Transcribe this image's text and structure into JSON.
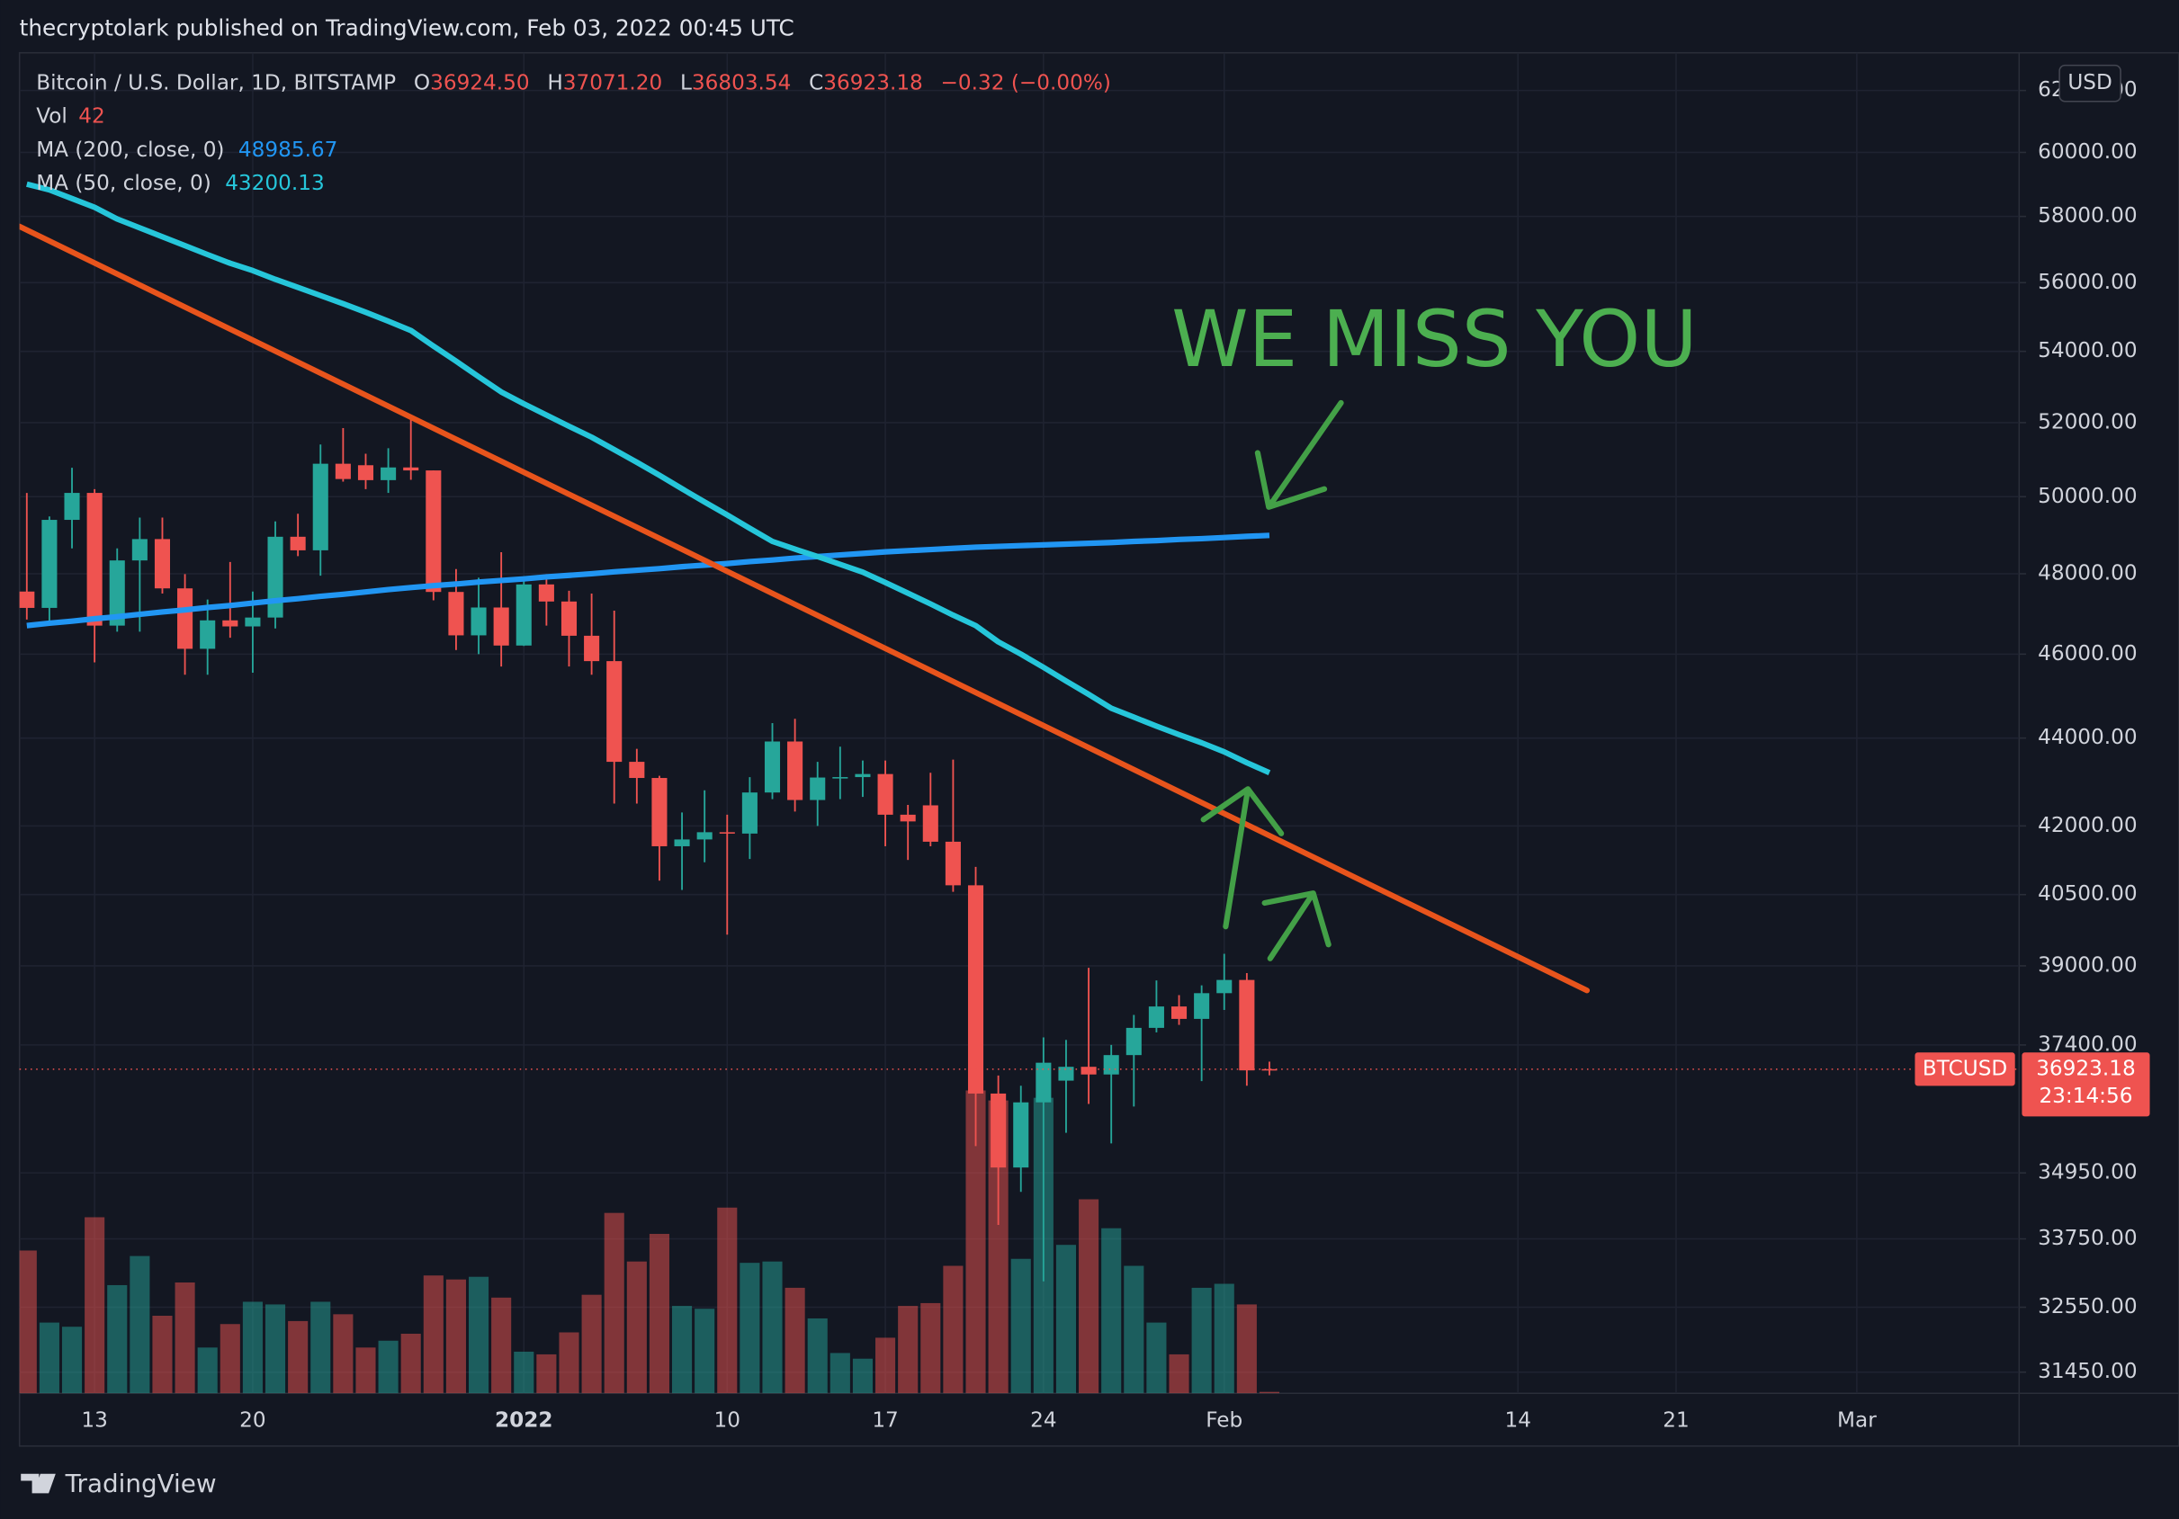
{
  "chart_data": {
    "type": "candlestick",
    "header": "thecryptolark published on TradingView.com, Feb 03, 2022 00:45 UTC",
    "title": "Bitcoin / U.S. Dollar, 1D, BITSTAMP",
    "legend": {
      "fields": [
        {
          "key": "O",
          "value": "36924.50"
        },
        {
          "key": "H",
          "value": "37071.20"
        },
        {
          "key": "L",
          "value": "36803.54"
        },
        {
          "key": "C",
          "value": "36923.18"
        }
      ],
      "change": "−0.32 (−0.00%)"
    },
    "annotation": "WE MISS YOU",
    "symbol": "BTCUSD",
    "currency": "USD",
    "countdown": "23:14:56",
    "brand": "TradingView",
    "up_color": "#26a69a",
    "down_color": "#ef5350",
    "log_scale": true,
    "grid": true,
    "x": [
      "2021-12-10",
      "2021-12-11",
      "2021-12-12",
      "2021-12-13",
      "2021-12-14",
      "2021-12-15",
      "2021-12-16",
      "2021-12-17",
      "2021-12-18",
      "2021-12-19",
      "2021-12-20",
      "2021-12-21",
      "2021-12-22",
      "2021-12-23",
      "2021-12-24",
      "2021-12-25",
      "2021-12-26",
      "2021-12-27",
      "2021-12-28",
      "2021-12-29",
      "2021-12-30",
      "2021-12-31",
      "2022-01-01",
      "2022-01-02",
      "2022-01-03",
      "2022-01-04",
      "2022-01-05",
      "2022-01-06",
      "2022-01-07",
      "2022-01-08",
      "2022-01-09",
      "2022-01-10",
      "2022-01-11",
      "2022-01-12",
      "2022-01-13",
      "2022-01-14",
      "2022-01-15",
      "2022-01-16",
      "2022-01-17",
      "2022-01-18",
      "2022-01-19",
      "2022-01-20",
      "2022-01-21",
      "2022-01-22",
      "2022-01-23",
      "2022-01-24",
      "2022-01-25",
      "2022-01-26",
      "2022-01-27",
      "2022-01-28",
      "2022-01-29",
      "2022-01-30",
      "2022-01-31",
      "2022-02-01",
      "2022-02-02",
      "2022-02-03"
    ],
    "open": [
      47550,
      47140,
      49390,
      50100,
      46700,
      48340,
      48890,
      47630,
      46130,
      46830,
      46680,
      46900,
      48950,
      48600,
      50880,
      50840,
      50440,
      50780,
      50700,
      47540,
      46460,
      47150,
      46210,
      47730,
      47300,
      46450,
      45830,
      43450,
      43080,
      41550,
      41700,
      41860,
      41830,
      42750,
      43920,
      42580,
      43090,
      43100,
      43170,
      42250,
      42460,
      41650,
      40700,
      36450,
      35050,
      36280,
      36700,
      36970,
      36820,
      37200,
      37740,
      38170,
      37920,
      38440,
      38710,
      36924.5
    ],
    "high": [
      50100,
      49480,
      50770,
      50200,
      48650,
      49450,
      49450,
      47990,
      47350,
      48300,
      47550,
      49350,
      49550,
      51400,
      51850,
      51150,
      51300,
      52090,
      50700,
      48120,
      47900,
      48550,
      47900,
      47990,
      47570,
      47500,
      47070,
      43750,
      43130,
      42300,
      42800,
      42250,
      43100,
      44350,
      44450,
      43450,
      43800,
      43480,
      43480,
      42470,
      43200,
      43500,
      41100,
      36800,
      36600,
      37550,
      37500,
      38960,
      37400,
      38000,
      38700,
      38400,
      38600,
      39250,
      38850,
      37071.2
    ],
    "low": [
      46850,
      46750,
      48650,
      45800,
      46550,
      46550,
      47500,
      45500,
      45500,
      46400,
      45550,
      46630,
      48450,
      47950,
      50400,
      50200,
      50100,
      50450,
      47330,
      46100,
      46000,
      45700,
      46200,
      46700,
      45700,
      45500,
      42500,
      42500,
      40800,
      40600,
      41200,
      39650,
      41270,
      42600,
      42320,
      42000,
      42600,
      42650,
      41550,
      41250,
      41550,
      40560,
      35450,
      34000,
      34600,
      33000,
      35700,
      36250,
      35500,
      36200,
      37650,
      37800,
      36690,
      38100,
      36600,
      36803.54
    ],
    "close": [
      47140,
      49390,
      50100,
      46700,
      48340,
      48890,
      47630,
      46130,
      46830,
      46680,
      46900,
      48950,
      48600,
      50880,
      50470,
      50440,
      50780,
      50700,
      47540,
      46460,
      47150,
      46210,
      47730,
      47300,
      46450,
      45830,
      43450,
      43080,
      41550,
      41700,
      41860,
      41830,
      42750,
      43920,
      42580,
      43090,
      43100,
      43170,
      42250,
      42100,
      41650,
      40700,
      36450,
      35050,
      36280,
      37050,
      36970,
      36820,
      37200,
      37740,
      38170,
      37920,
      38440,
      38710,
      36900,
      36923.18
    ],
    "volume": {
      "name": "Vol",
      "values": [
        4290,
        2125,
        2000,
        5290,
        3250,
        4125,
        2330,
        3330,
        1375,
        2080,
        2750,
        2670,
        2170,
        2750,
        2375,
        1375,
        1580,
        1790,
        3540,
        3420,
        3500,
        2875,
        1250,
        1170,
        1830,
        2960,
        5420,
        3960,
        4790,
        2625,
        2540,
        5580,
        3920,
        3960,
        3170,
        2250,
        1210,
        1040,
        1670,
        2625,
        2710,
        3830,
        9100,
        8800,
        4040,
        8880,
        4460,
        5830,
        4960,
        3830,
        2125,
        1170,
        3170,
        3290,
        2670,
        42
      ]
    },
    "moving_averages": [
      {
        "name": "MA (200, close, 0)",
        "color": "#2196f3",
        "values": [
          46700,
          46760,
          46810,
          46870,
          46920,
          46980,
          47040,
          47090,
          47150,
          47200,
          47260,
          47320,
          47370,
          47430,
          47480,
          47540,
          47600,
          47650,
          47700,
          47740,
          47790,
          47830,
          47870,
          47920,
          47960,
          48000,
          48050,
          48090,
          48130,
          48180,
          48220,
          48260,
          48310,
          48350,
          48400,
          48440,
          48480,
          48520,
          48560,
          48590,
          48620,
          48650,
          48680,
          48700,
          48720,
          48740,
          48760,
          48780,
          48800,
          48830,
          48850,
          48880,
          48900,
          48930,
          48960,
          48985.67
        ]
      },
      {
        "name": "MA (50, close, 0)",
        "color": "#26c6da",
        "values": [
          59000,
          58820,
          58550,
          58280,
          57920,
          57650,
          57380,
          57110,
          56840,
          56580,
          56360,
          56100,
          55860,
          55620,
          55380,
          55130,
          54870,
          54600,
          54150,
          53720,
          53280,
          52850,
          52520,
          52210,
          51900,
          51600,
          51260,
          50920,
          50570,
          50210,
          49860,
          49520,
          49170,
          48830,
          48630,
          48440,
          48240,
          48040,
          47780,
          47510,
          47240,
          46960,
          46700,
          46300,
          46000,
          45680,
          45350,
          45030,
          44700,
          44490,
          44280,
          44080,
          43890,
          43680,
          43430,
          43200.13
        ]
      }
    ],
    "xlim": [
      "2021-12-09",
      "2022-03-08"
    ],
    "xticks": [
      {
        "value": "2021-12-13",
        "label": "13"
      },
      {
        "value": "2021-12-20",
        "label": "20"
      },
      {
        "value": "2022-01-01",
        "label": "2022"
      },
      {
        "value": "2022-01-10",
        "label": "10"
      },
      {
        "value": "2022-01-17",
        "label": "17"
      },
      {
        "value": "2022-01-24",
        "label": "24"
      },
      {
        "value": "2022-02-01",
        "label": "Feb"
      },
      {
        "value": "2022-02-14",
        "label": "14"
      },
      {
        "value": "2022-02-21",
        "label": "21"
      },
      {
        "value": "2022-03-01",
        "label": "Mar"
      }
    ],
    "ylim": [
      31100,
      63250
    ],
    "yticks": [
      {
        "value": 62000,
        "label": "62000.00"
      },
      {
        "value": 60000,
        "label": "60000.00"
      },
      {
        "value": 58000,
        "label": "58000.00"
      },
      {
        "value": 56000,
        "label": "56000.00"
      },
      {
        "value": 54000,
        "label": "54000.00"
      },
      {
        "value": 52000,
        "label": "52000.00"
      },
      {
        "value": 50000,
        "label": "50000.00"
      },
      {
        "value": 48000,
        "label": "48000.00"
      },
      {
        "value": 46000,
        "label": "46000.00"
      },
      {
        "value": 44000,
        "label": "44000.00"
      },
      {
        "value": 42000,
        "label": "42000.00"
      },
      {
        "value": 40500,
        "label": "40500.00"
      },
      {
        "value": 39000,
        "label": "39000.00"
      },
      {
        "value": 37400,
        "label": "37400.00"
      },
      {
        "value": 34950,
        "label": "34950.00"
      },
      {
        "value": 33750,
        "label": "33750.00"
      },
      {
        "value": 32550,
        "label": "32550.00"
      },
      {
        "value": 31450,
        "label": "31450.00"
      }
    ]
  }
}
